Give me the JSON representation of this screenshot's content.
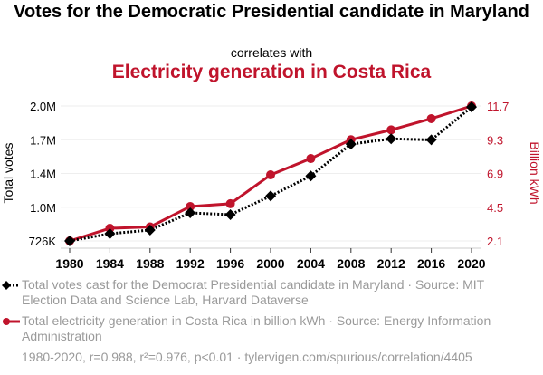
{
  "header": {
    "title": "Votes for the Democratic Presidential candidate in Maryland",
    "connector": "correlates with",
    "subtitle": "Electricity generation in Costa Rica"
  },
  "colors": {
    "series1": "#000000",
    "series2": "#c0142c",
    "grid": "#eeeeee",
    "muted": "#9a9a9a"
  },
  "legend": [
    {
      "icon": "diamond-dotted-line-icon",
      "text": "Total votes cast for the Democrat Presidential candidate in Maryland · Source: MIT Election Data and Science Lab, Harvard Dataverse"
    },
    {
      "icon": "circle-solid-line-icon",
      "text": "Total electricity generation in Costa Rica in billion kWh · Source: Energy Information Administration"
    }
  ],
  "footer": "1980-2020, r=0.988, r²=0.976, p<0.01 · tylervigen.com/spurious/correlation/4405",
  "chart_data": {
    "type": "line",
    "title": "Votes for the Democratic Presidential candidate in Maryland correlates with Electricity generation in Costa Rica",
    "x": [
      1980,
      1984,
      1988,
      1992,
      1996,
      2000,
      2004,
      2008,
      2012,
      2016,
      2020
    ],
    "xlabel": "",
    "x_ticks": [
      "1980",
      "1984",
      "1988",
      "1992",
      "1996",
      "2000",
      "2004",
      "2008",
      "2012",
      "2016",
      "2020"
    ],
    "grid": true,
    "legend_position": "bottom",
    "left_axis": {
      "label": "Total votes",
      "ticks": [
        "726K",
        "1.0M",
        "1.4M",
        "1.7M",
        "2.0M"
      ],
      "range": [
        726000,
        2000000
      ]
    },
    "right_axis": {
      "label": "Billion kWh",
      "ticks": [
        "2.1",
        "4.5",
        "6.9",
        "9.3",
        "11.7"
      ],
      "range": [
        2.1,
        11.7
      ]
    },
    "series": [
      {
        "name": "Total votes cast for the Democrat Presidential candidate in Maryland",
        "axis": "left",
        "marker": "diamond",
        "line": "dotted",
        "values": [
          726000,
          794000,
          829000,
          991000,
          974000,
          1150000,
          1340000,
          1640000,
          1690000,
          1680000,
          1990000
        ]
      },
      {
        "name": "Total electricity generation in Costa Rica in billion kWh",
        "axis": "right",
        "marker": "circle",
        "line": "solid",
        "values": [
          2.1,
          3.0,
          3.1,
          4.55,
          4.75,
          6.8,
          7.96,
          9.3,
          10.0,
          10.8,
          11.7
        ]
      }
    ]
  }
}
